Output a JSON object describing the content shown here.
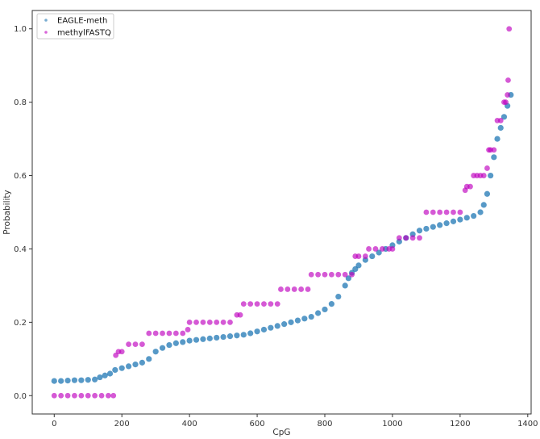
{
  "chart_data": {
    "type": "scatter",
    "xlabel": "CpG",
    "ylabel": "Probability",
    "xlim": [
      -65,
      1410
    ],
    "ylim": [
      -0.05,
      1.05
    ],
    "xticks": [
      0,
      200,
      400,
      600,
      800,
      1000,
      1200,
      1400
    ],
    "yticks": [
      0.0,
      0.2,
      0.4,
      0.6,
      0.8,
      1.0
    ],
    "xtick_labels": [
      "0",
      "200",
      "400",
      "600",
      "800",
      "1000",
      "1200",
      "1400"
    ],
    "ytick_labels": [
      "0.0",
      "0.2",
      "0.4",
      "0.6",
      "0.8",
      "1.0"
    ],
    "grid": false,
    "legend_position": "top-left",
    "series": [
      {
        "name": "EAGLE-meth",
        "color": "#1f77b4",
        "marker": "circle",
        "x": [
          0,
          20,
          40,
          60,
          80,
          100,
          120,
          135,
          150,
          165,
          180,
          200,
          220,
          240,
          260,
          280,
          300,
          320,
          340,
          360,
          380,
          400,
          420,
          440,
          460,
          480,
          500,
          520,
          540,
          560,
          580,
          600,
          620,
          640,
          660,
          680,
          700,
          720,
          740,
          760,
          780,
          800,
          820,
          840,
          860,
          870,
          880,
          890,
          900,
          920,
          940,
          960,
          980,
          1000,
          1020,
          1040,
          1060,
          1080,
          1100,
          1120,
          1140,
          1160,
          1180,
          1200,
          1220,
          1240,
          1260,
          1270,
          1280,
          1290,
          1300,
          1310,
          1320,
          1330,
          1340,
          1350
        ],
        "y": [
          0.04,
          0.04,
          0.041,
          0.042,
          0.042,
          0.043,
          0.044,
          0.05,
          0.055,
          0.06,
          0.07,
          0.075,
          0.08,
          0.085,
          0.09,
          0.1,
          0.12,
          0.13,
          0.138,
          0.143,
          0.146,
          0.15,
          0.152,
          0.154,
          0.156,
          0.158,
          0.16,
          0.162,
          0.164,
          0.166,
          0.17,
          0.175,
          0.18,
          0.185,
          0.19,
          0.195,
          0.2,
          0.205,
          0.21,
          0.215,
          0.225,
          0.235,
          0.25,
          0.27,
          0.3,
          0.32,
          0.335,
          0.345,
          0.355,
          0.37,
          0.38,
          0.39,
          0.4,
          0.41,
          0.42,
          0.43,
          0.44,
          0.45,
          0.455,
          0.46,
          0.465,
          0.47,
          0.475,
          0.48,
          0.485,
          0.49,
          0.5,
          0.52,
          0.55,
          0.6,
          0.65,
          0.7,
          0.73,
          0.76,
          0.79,
          0.82
        ]
      },
      {
        "name": "methylFASTQ",
        "color": "#bf00bf",
        "marker": "circle",
        "x": [
          0,
          20,
          40,
          60,
          80,
          100,
          120,
          140,
          160,
          175,
          182,
          190,
          200,
          220,
          240,
          260,
          280,
          300,
          320,
          340,
          360,
          380,
          395,
          400,
          420,
          440,
          460,
          480,
          500,
          520,
          540,
          550,
          560,
          580,
          600,
          620,
          640,
          660,
          670,
          690,
          710,
          730,
          750,
          760,
          780,
          800,
          820,
          840,
          860,
          880,
          890,
          900,
          920,
          930,
          950,
          970,
          990,
          1000,
          1020,
          1040,
          1060,
          1080,
          1100,
          1120,
          1140,
          1160,
          1180,
          1200,
          1215,
          1220,
          1230,
          1240,
          1250,
          1260,
          1270,
          1280,
          1285,
          1290,
          1300,
          1310,
          1320,
          1330,
          1335,
          1340,
          1342,
          1345
        ],
        "y": [
          0.0,
          0.0,
          0.0,
          0.0,
          0.0,
          0.0,
          0.0,
          0.0,
          0.0,
          0.0,
          0.11,
          0.12,
          0.12,
          0.14,
          0.14,
          0.14,
          0.17,
          0.17,
          0.17,
          0.17,
          0.17,
          0.17,
          0.18,
          0.2,
          0.2,
          0.2,
          0.2,
          0.2,
          0.2,
          0.2,
          0.22,
          0.22,
          0.25,
          0.25,
          0.25,
          0.25,
          0.25,
          0.25,
          0.29,
          0.29,
          0.29,
          0.29,
          0.29,
          0.33,
          0.33,
          0.33,
          0.33,
          0.33,
          0.33,
          0.33,
          0.38,
          0.38,
          0.38,
          0.4,
          0.4,
          0.4,
          0.4,
          0.4,
          0.43,
          0.43,
          0.43,
          0.43,
          0.5,
          0.5,
          0.5,
          0.5,
          0.5,
          0.5,
          0.56,
          0.57,
          0.57,
          0.6,
          0.6,
          0.6,
          0.6,
          0.62,
          0.67,
          0.67,
          0.67,
          0.75,
          0.75,
          0.8,
          0.8,
          0.82,
          0.86,
          1.0
        ]
      }
    ]
  }
}
